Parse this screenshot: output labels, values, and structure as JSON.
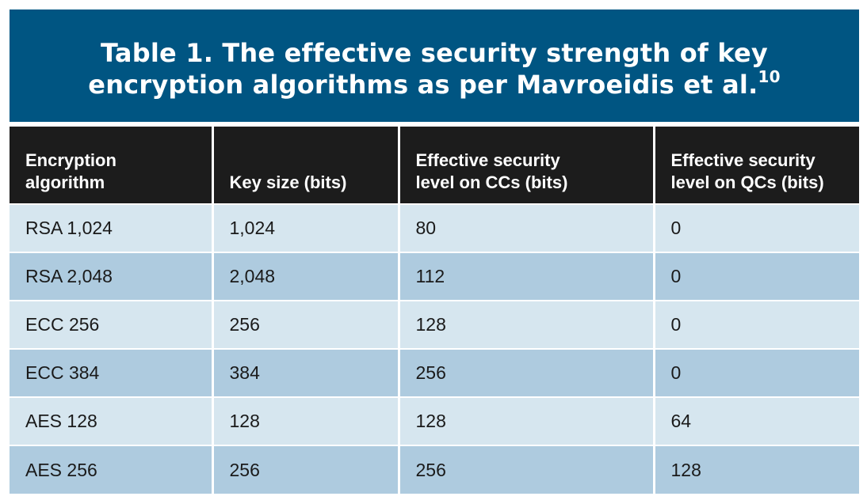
{
  "title": {
    "line1": "Table 1. The effective security strength of key",
    "line2": "encryption algorithms as per Mavroeidis et al.",
    "superscript": "10"
  },
  "columns": {
    "col1_line1": "Encryption",
    "col1_line2": "algorithm",
    "col2_line1": "Key size (bits)",
    "col3_line1": "Effective security",
    "col3_line2": "level on CCs (bits)",
    "col4_line1": "Effective security",
    "col4_line2": "level on QCs (bits)"
  },
  "rows": [
    [
      "RSA 1,024",
      "1,024",
      "80",
      "0"
    ],
    [
      "RSA 2,048",
      "2,048",
      "112",
      "0"
    ],
    [
      "ECC 256",
      "256",
      "128",
      "0"
    ],
    [
      "ECC 384",
      "384",
      "256",
      "0"
    ],
    [
      "AES 128",
      "128",
      "128",
      "64"
    ],
    [
      "AES 256",
      "256",
      "256",
      "128"
    ]
  ],
  "colors": {
    "title_background": "#005582",
    "header_background": "#1c1c1c",
    "row_light": "#d6e6ef",
    "row_dark": "#aecbdf"
  }
}
